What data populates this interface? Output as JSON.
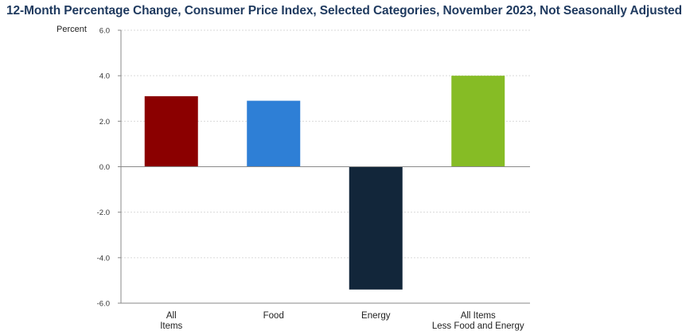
{
  "chart_data": {
    "type": "bar",
    "title": "12-Month Percentage Change, Consumer Price Index, Selected Categories, November 2023, Not Seasonally Adjusted",
    "ylabel": "Percent",
    "xlabel": "",
    "ylim": [
      -6.0,
      6.0
    ],
    "yticks": [
      "6.0",
      "4.0",
      "2.0",
      "0.0",
      "-2.0",
      "-4.0",
      "-6.0"
    ],
    "ytick_values": [
      6,
      4,
      2,
      0,
      -2,
      -4,
      -6
    ],
    "grid": true,
    "categories": [
      [
        "All",
        "Items"
      ],
      [
        "Food"
      ],
      [
        "Energy"
      ],
      [
        "All Items",
        "Less Food and Energy"
      ]
    ],
    "values": [
      3.1,
      2.9,
      -5.4,
      4.0
    ],
    "colors": [
      "#8b0000",
      "#2e7fd6",
      "#12263a",
      "#86bc25"
    ]
  }
}
